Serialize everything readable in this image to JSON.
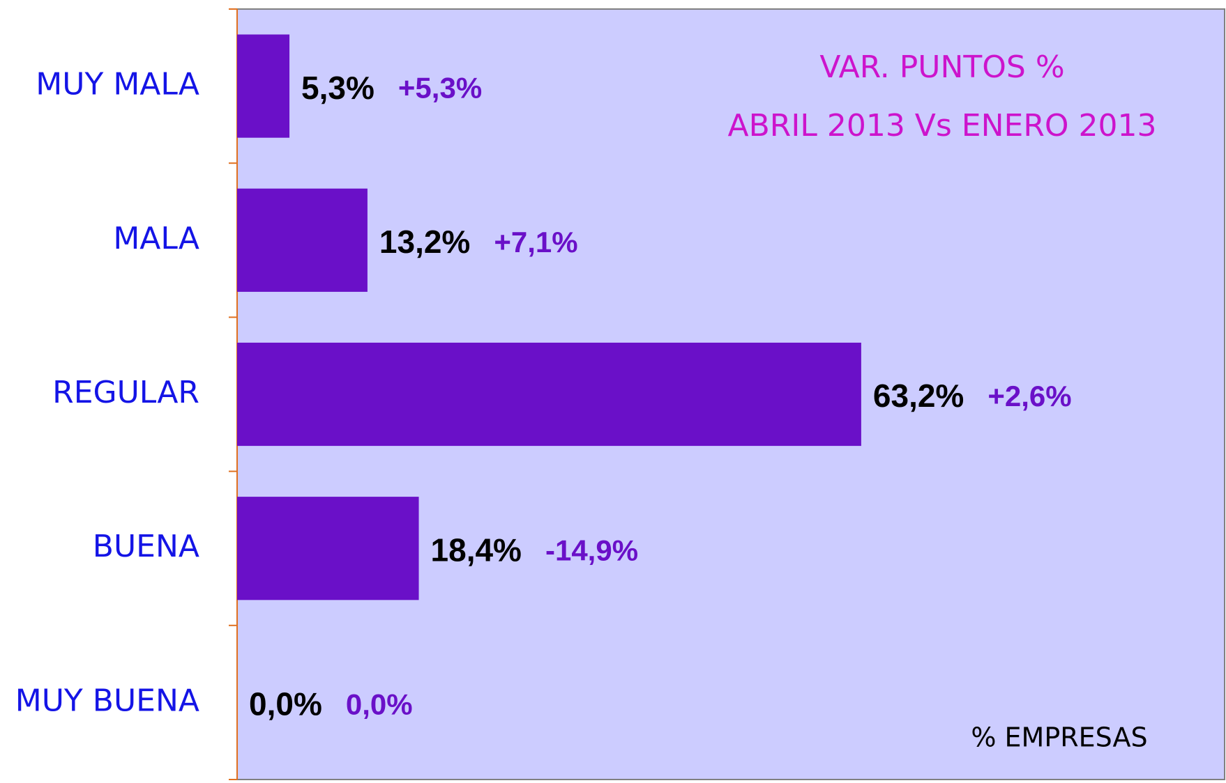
{
  "chart_data": {
    "type": "bar",
    "orientation": "horizontal",
    "title": [
      "VAR. PUNTOS %",
      "ABRIL 2013 Vs ENERO 2013"
    ],
    "x_label": "% EMPRESAS",
    "categories": [
      "MUY MALA",
      "MALA",
      "REGULAR",
      "BUENA",
      "MUY BUENA"
    ],
    "values": [
      5.3,
      13.2,
      63.2,
      18.4,
      0.0
    ],
    "value_labels": [
      "5,3%",
      "13,2%",
      "63,2%",
      "18,4%",
      "0,0%"
    ],
    "changes": {
      "values": [
        5.3,
        7.1,
        2.6,
        -14.9,
        0.0
      ],
      "value_labels": [
        "+5,3%",
        "+7,1%",
        "+2,6%",
        "-14,9%",
        "0,0%"
      ]
    },
    "color": "#6a10c8",
    "xlim": [
      0,
      100
    ]
  }
}
